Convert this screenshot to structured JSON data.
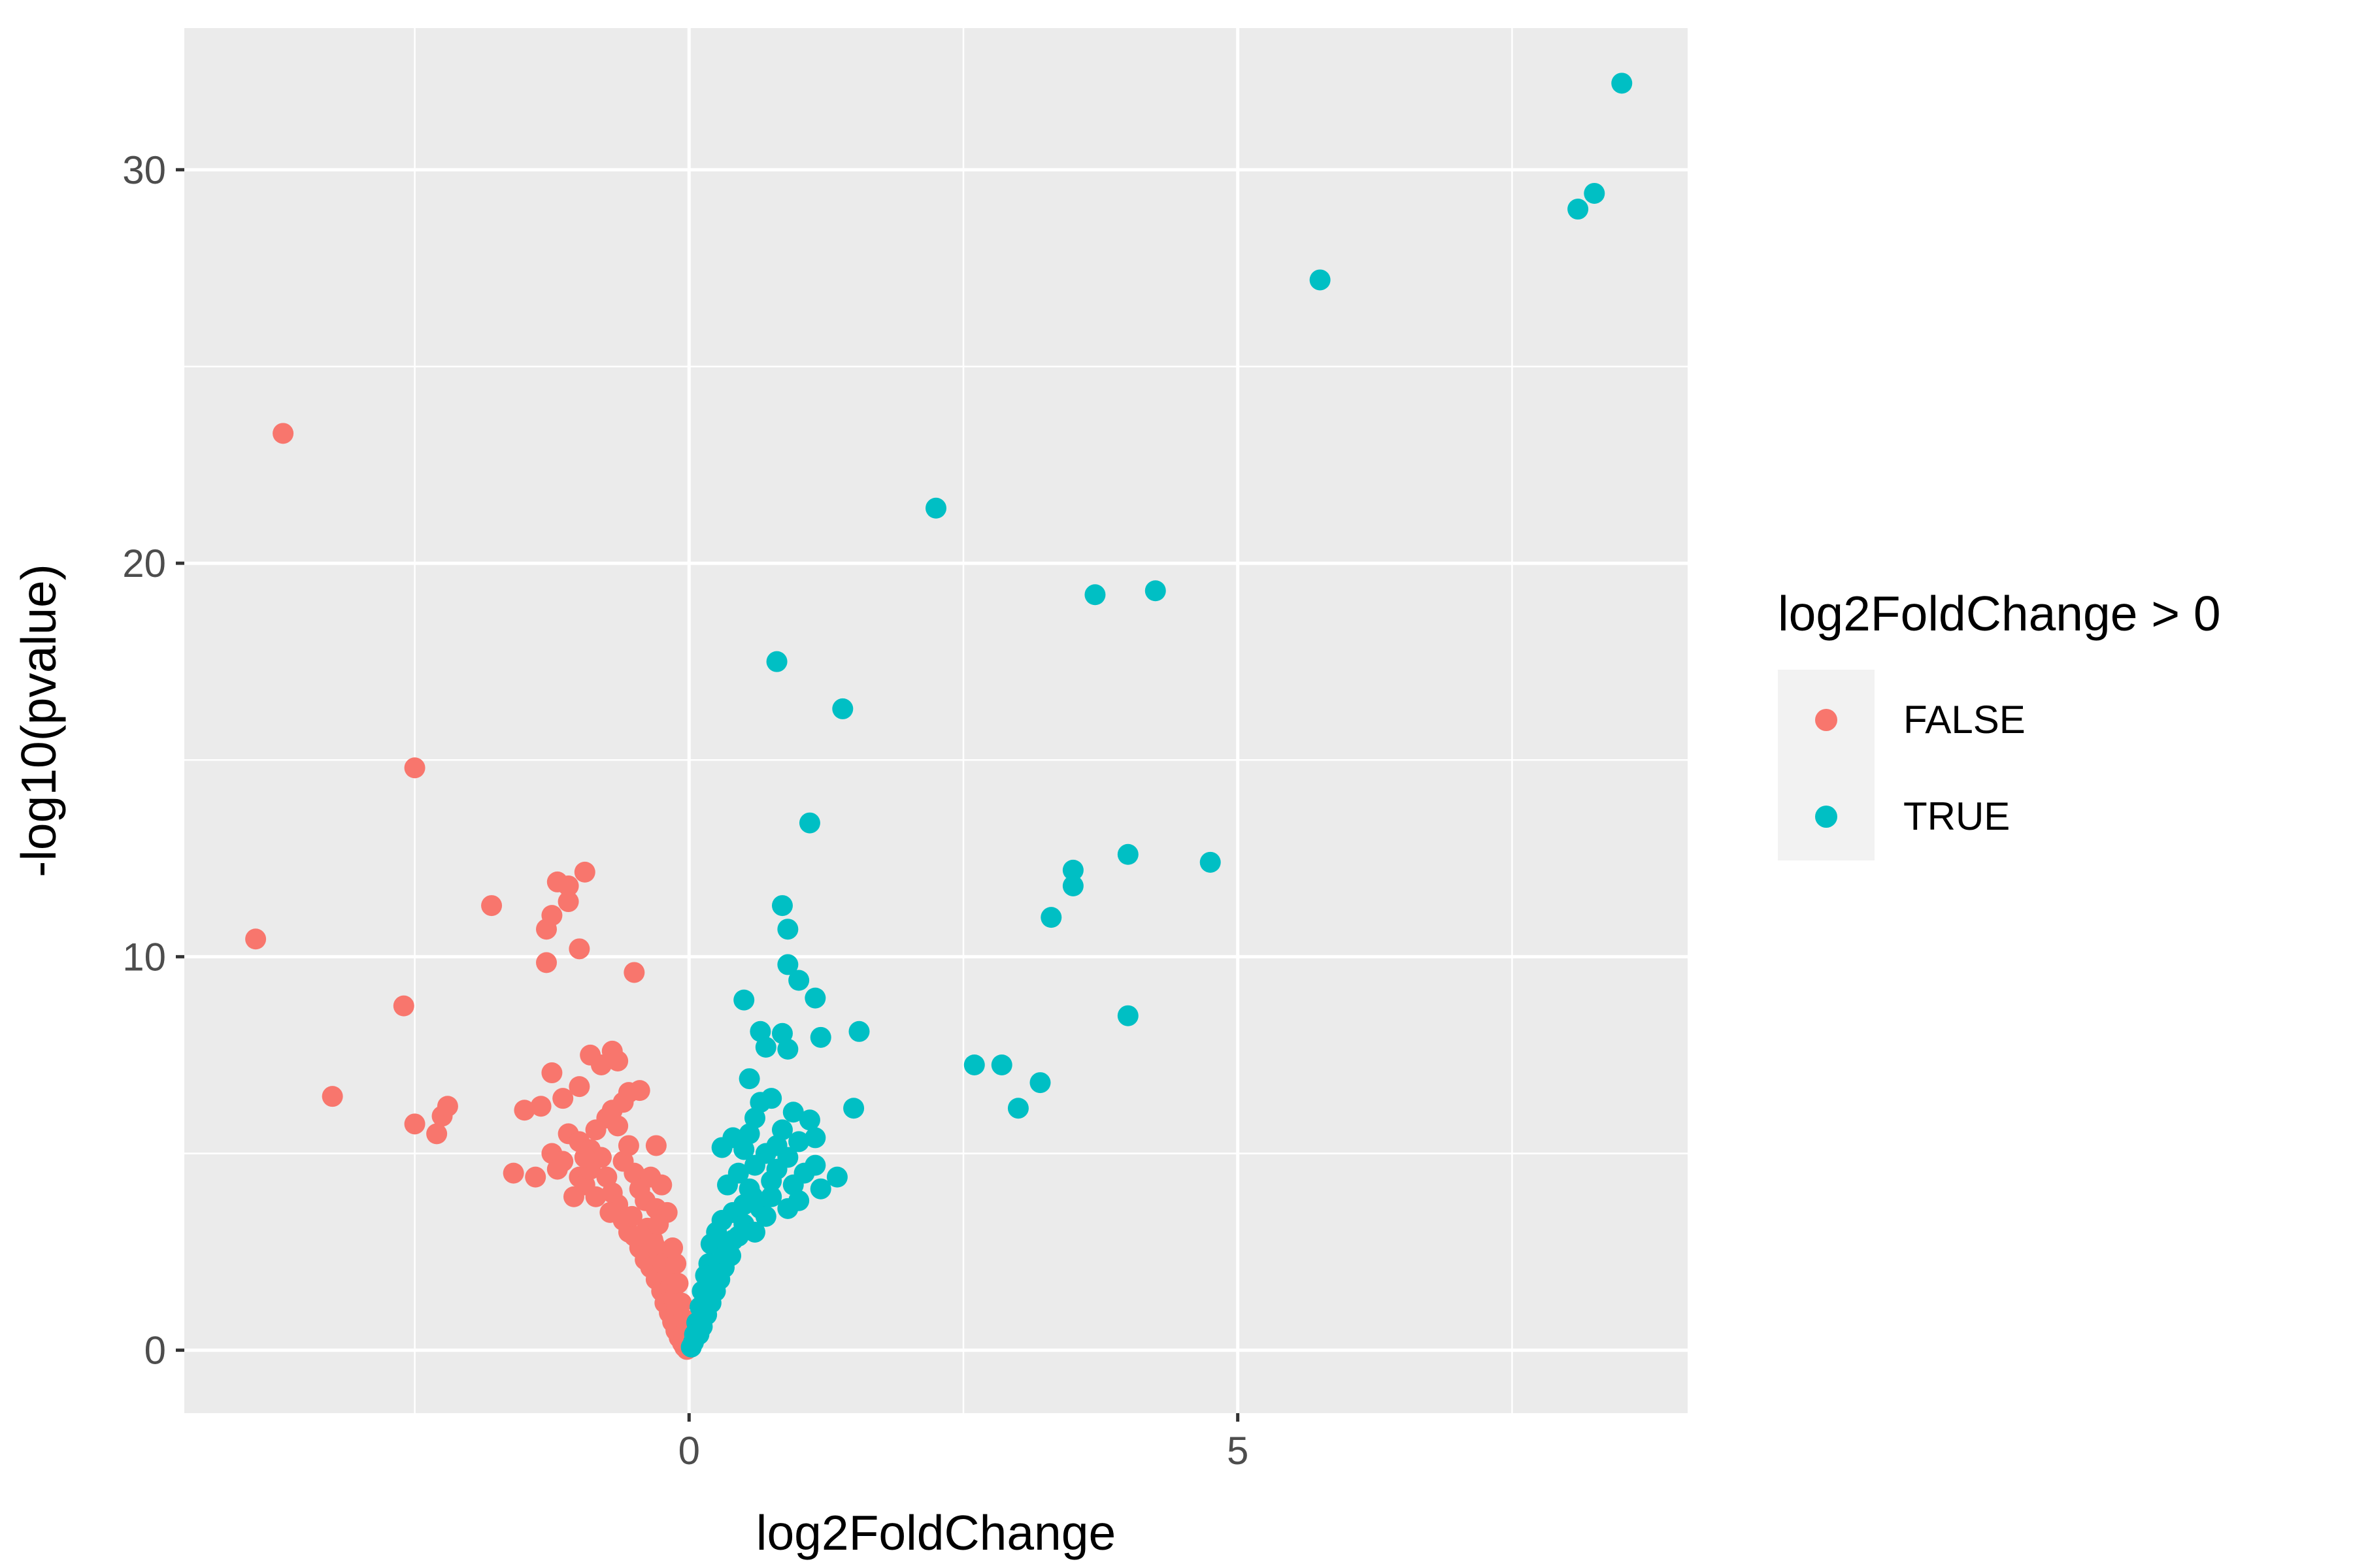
{
  "chart_data": {
    "type": "scatter",
    "title": "",
    "xlabel": "log2FoldChange",
    "ylabel": "-log10(pvalue)",
    "xlim": [
      -4.6,
      9.1
    ],
    "ylim": [
      -1.6,
      33.6
    ],
    "x_ticks": [
      0,
      5
    ],
    "x_tick_labels": [
      "0",
      "5"
    ],
    "y_ticks": [
      0,
      10,
      20,
      30
    ],
    "y_tick_labels": [
      "0",
      "10",
      "20",
      "30"
    ],
    "grid": true,
    "legend": {
      "title": "log2FoldChange > 0",
      "position": "right"
    },
    "colors": {
      "panel": "#ebebeb",
      "grid": "#ffffff",
      "FALSE": "#f8766d",
      "TRUE": "#00bfc4"
    },
    "series": [
      {
        "name": "FALSE",
        "color": "#f8766d",
        "points": [
          [
            -3.7,
            23.3
          ],
          [
            -3.95,
            10.45
          ],
          [
            -3.25,
            6.45
          ],
          [
            -2.5,
            14.8
          ],
          [
            -2.6,
            8.75
          ],
          [
            -2.5,
            5.75
          ],
          [
            -2.3,
            5.5
          ],
          [
            -2.25,
            5.95
          ],
          [
            -2.2,
            6.2
          ],
          [
            -1.8,
            11.3
          ],
          [
            -1.6,
            4.5
          ],
          [
            -1.5,
            6.1
          ],
          [
            -1.4,
            4.4
          ],
          [
            -1.35,
            6.2
          ],
          [
            -1.3,
            10.7
          ],
          [
            -1.3,
            9.85
          ],
          [
            -1.25,
            5.0
          ],
          [
            -1.2,
            4.6
          ],
          [
            -1.25,
            11.05
          ],
          [
            -1.2,
            11.9
          ],
          [
            -1.1,
            11.8
          ],
          [
            -1.1,
            11.4
          ],
          [
            -0.95,
            12.15
          ],
          [
            -1.0,
            10.2
          ],
          [
            -1.25,
            7.05
          ],
          [
            -1.15,
            6.4
          ],
          [
            -1.0,
            6.7
          ],
          [
            -0.9,
            7.5
          ],
          [
            -0.8,
            7.25
          ],
          [
            -0.7,
            7.6
          ],
          [
            -0.65,
            7.35
          ],
          [
            -0.55,
            6.55
          ],
          [
            -0.45,
            6.6
          ],
          [
            -0.5,
            9.6
          ],
          [
            -0.3,
            5.2
          ],
          [
            -1.1,
            5.5
          ],
          [
            -1.0,
            5.3
          ],
          [
            -0.9,
            5.1
          ],
          [
            -0.85,
            5.6
          ],
          [
            -0.75,
            5.9
          ],
          [
            -0.7,
            6.1
          ],
          [
            -1.0,
            4.4
          ],
          [
            -0.95,
            4.2
          ],
          [
            -1.05,
            3.9
          ],
          [
            -0.9,
            4.6
          ],
          [
            -0.8,
            4.9
          ],
          [
            -0.75,
            4.4
          ],
          [
            -0.7,
            4.0
          ],
          [
            -0.65,
            3.7
          ],
          [
            -0.6,
            4.8
          ],
          [
            -0.55,
            5.2
          ],
          [
            -0.5,
            4.5
          ],
          [
            -0.45,
            4.1
          ],
          [
            -0.4,
            3.8
          ],
          [
            -0.35,
            4.4
          ],
          [
            -0.3,
            3.6
          ],
          [
            -0.25,
            4.2
          ],
          [
            -0.2,
            3.5
          ],
          [
            -0.6,
            3.3
          ],
          [
            -0.55,
            3.0
          ],
          [
            -0.5,
            2.9
          ],
          [
            -0.45,
            2.6
          ],
          [
            -0.4,
            2.3
          ],
          [
            -0.35,
            2.1
          ],
          [
            -0.3,
            1.8
          ],
          [
            -0.25,
            1.5
          ],
          [
            -0.22,
            1.2
          ],
          [
            -0.18,
            0.95
          ],
          [
            -0.15,
            0.72
          ],
          [
            -0.12,
            0.5
          ],
          [
            -0.09,
            0.32
          ],
          [
            -0.06,
            0.18
          ],
          [
            -0.04,
            0.08
          ],
          [
            -0.02,
            0.02
          ],
          [
            -0.38,
            3.1
          ],
          [
            -0.33,
            2.8
          ],
          [
            -0.28,
            2.5
          ],
          [
            -0.24,
            2.2
          ],
          [
            -0.2,
            1.9
          ],
          [
            -0.17,
            1.6
          ],
          [
            -0.14,
            1.3
          ],
          [
            -0.11,
            1.0
          ],
          [
            -0.08,
            0.7
          ],
          [
            -0.05,
            0.4
          ],
          [
            -0.15,
            2.6
          ],
          [
            -0.12,
            2.2
          ],
          [
            -0.1,
            1.7
          ],
          [
            -0.07,
            1.2
          ],
          [
            -0.05,
            0.8
          ],
          [
            -0.03,
            0.4
          ],
          [
            -0.65,
            5.7
          ],
          [
            -0.6,
            6.3
          ],
          [
            -0.85,
            3.9
          ],
          [
            -0.95,
            4.9
          ],
          [
            -1.15,
            4.8
          ],
          [
            -0.72,
            3.5
          ],
          [
            -0.52,
            3.4
          ],
          [
            -0.42,
            2.9
          ],
          [
            -0.32,
            2.7
          ],
          [
            -0.28,
            3.2
          ]
        ]
      },
      {
        "name": "TRUE",
        "color": "#00bfc4",
        "points": [
          [
            8.5,
            32.2
          ],
          [
            8.25,
            29.4
          ],
          [
            8.1,
            29.0
          ],
          [
            5.75,
            27.2
          ],
          [
            2.25,
            21.4
          ],
          [
            4.25,
            19.3
          ],
          [
            3.7,
            19.2
          ],
          [
            0.8,
            17.5
          ],
          [
            1.4,
            16.3
          ],
          [
            1.1,
            13.4
          ],
          [
            4.0,
            12.6
          ],
          [
            4.75,
            12.4
          ],
          [
            3.5,
            12.2
          ],
          [
            3.5,
            11.8
          ],
          [
            3.3,
            11.0
          ],
          [
            0.85,
            11.3
          ],
          [
            0.9,
            10.7
          ],
          [
            0.9,
            9.8
          ],
          [
            1.0,
            9.4
          ],
          [
            1.15,
            8.95
          ],
          [
            0.5,
            8.9
          ],
          [
            4.0,
            8.5
          ],
          [
            1.55,
            8.1
          ],
          [
            1.2,
            7.95
          ],
          [
            0.65,
            8.1
          ],
          [
            0.85,
            8.05
          ],
          [
            0.7,
            7.7
          ],
          [
            0.9,
            7.65
          ],
          [
            2.6,
            7.25
          ],
          [
            2.85,
            7.25
          ],
          [
            3.2,
            6.8
          ],
          [
            3.0,
            6.15
          ],
          [
            1.5,
            6.15
          ],
          [
            0.55,
            6.9
          ],
          [
            0.75,
            6.4
          ],
          [
            0.95,
            6.05
          ],
          [
            1.1,
            5.85
          ],
          [
            0.65,
            6.3
          ],
          [
            0.85,
            5.6
          ],
          [
            1.0,
            5.3
          ],
          [
            1.15,
            5.4
          ],
          [
            0.6,
            5.9
          ],
          [
            0.4,
            5.4
          ],
          [
            0.3,
            5.15
          ],
          [
            0.5,
            5.1
          ],
          [
            0.7,
            5.0
          ],
          [
            0.9,
            4.9
          ],
          [
            1.15,
            4.7
          ],
          [
            1.35,
            4.4
          ],
          [
            1.2,
            4.1
          ],
          [
            0.95,
            4.2
          ],
          [
            0.8,
            4.6
          ],
          [
            0.6,
            4.7
          ],
          [
            0.45,
            4.5
          ],
          [
            0.35,
            4.2
          ],
          [
            0.55,
            4.1
          ],
          [
            0.75,
            3.9
          ],
          [
            1.0,
            3.8
          ],
          [
            0.9,
            3.6
          ],
          [
            0.65,
            3.6
          ],
          [
            0.5,
            3.7
          ],
          [
            0.4,
            3.5
          ],
          [
            0.3,
            3.3
          ],
          [
            0.25,
            3.0
          ],
          [
            0.2,
            2.7
          ],
          [
            0.5,
            3.2
          ],
          [
            0.6,
            3.0
          ],
          [
            0.7,
            3.4
          ],
          [
            0.45,
            2.9
          ],
          [
            0.35,
            2.6
          ],
          [
            0.3,
            2.3
          ],
          [
            0.25,
            2.0
          ],
          [
            0.2,
            1.7
          ],
          [
            0.17,
            1.4
          ],
          [
            0.14,
            1.1
          ],
          [
            0.11,
            0.8
          ],
          [
            0.08,
            0.55
          ],
          [
            0.06,
            0.35
          ],
          [
            0.04,
            0.2
          ],
          [
            0.02,
            0.08
          ],
          [
            0.4,
            2.8
          ],
          [
            0.38,
            2.4
          ],
          [
            0.32,
            2.1
          ],
          [
            0.28,
            1.8
          ],
          [
            0.24,
            1.5
          ],
          [
            0.2,
            1.2
          ],
          [
            0.16,
            0.9
          ],
          [
            0.12,
            0.6
          ],
          [
            0.09,
            0.4
          ],
          [
            0.18,
            2.2
          ],
          [
            0.15,
            1.9
          ],
          [
            0.12,
            1.5
          ],
          [
            0.1,
            1.1
          ],
          [
            0.07,
            0.7
          ],
          [
            0.05,
            0.4
          ],
          [
            0.55,
            5.5
          ],
          [
            0.8,
            5.2
          ],
          [
            1.05,
            4.5
          ],
          [
            0.75,
            4.3
          ],
          [
            0.58,
            3.9
          ]
        ]
      }
    ]
  }
}
